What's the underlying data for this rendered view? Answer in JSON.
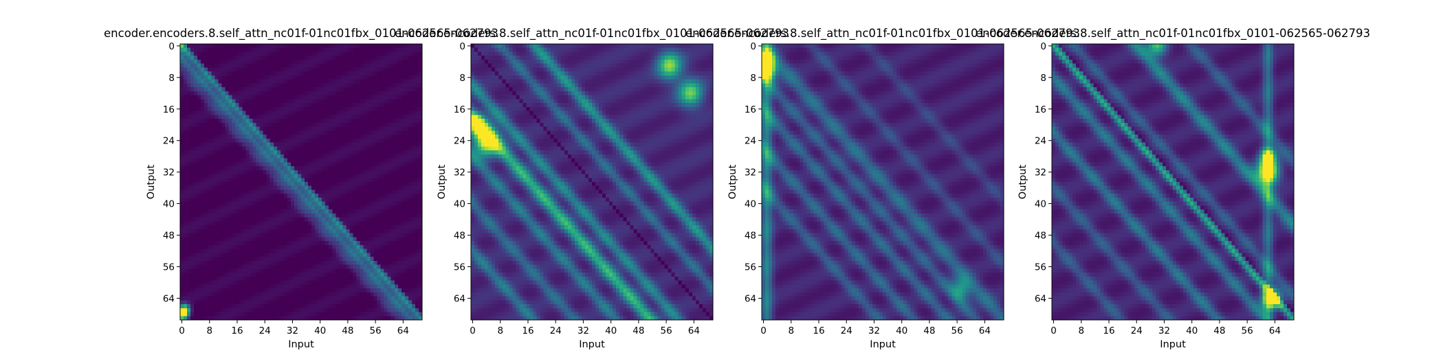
{
  "figure": {
    "colormap": "viridis",
    "background": "#ffffff"
  },
  "chart_data": [
    {
      "type": "heatmap",
      "title": "encoder.encoders.8.self_attn_nc01f-01nc01fbx_0101-062565-062793",
      "xlabel": "Input",
      "ylabel": "Output",
      "size": 70,
      "xticks": [
        0,
        8,
        16,
        24,
        32,
        40,
        48,
        56,
        64
      ],
      "yticks": [
        0,
        8,
        16,
        24,
        32,
        40,
        48,
        56,
        64
      ],
      "xticklabels": [
        "0",
        "8",
        "16",
        "24",
        "32",
        "40",
        "48",
        "56",
        "64"
      ],
      "yticklabels": [
        "0",
        "8",
        "16",
        "24",
        "32",
        "40",
        "48",
        "56",
        "64"
      ],
      "pattern": {
        "base": 0.0,
        "triangle_mask": "upper-right-dark",
        "diagonals": [
          {
            "offset": 0,
            "weight": 0.45,
            "width": 1.0
          },
          {
            "offset": -3,
            "weight": 0.35,
            "width": 1.2
          },
          {
            "offset": -6,
            "weight": 0.18,
            "width": 1.5
          }
        ],
        "hotspots": [
          {
            "row": 68,
            "col": 0,
            "value": 1.0,
            "radius": 1.2
          },
          {
            "row": 67,
            "col": 1,
            "value": 0.7,
            "radius": 1.0
          },
          {
            "row": 0,
            "col": 0,
            "value": 0.3,
            "radius": 1.0
          }
        ]
      }
    },
    {
      "type": "heatmap",
      "title": "encoder.encoders.8.self_attn_nc01f-01nc01fbx_0101-062565-062793",
      "xlabel": "Input",
      "ylabel": "Output",
      "size": 70,
      "xticks": [
        0,
        8,
        16,
        24,
        32,
        40,
        48,
        56,
        64
      ],
      "yticks": [
        0,
        8,
        16,
        24,
        32,
        40,
        48,
        56,
        64
      ],
      "xticklabels": [
        "0",
        "8",
        "16",
        "24",
        "32",
        "40",
        "48",
        "56",
        "64"
      ],
      "yticklabels": [
        "0",
        "8",
        "16",
        "24",
        "32",
        "40",
        "48",
        "56",
        "64"
      ],
      "pattern": {
        "base": 0.12,
        "triangle_mask": "none",
        "diagonals": [
          {
            "offset": 18,
            "weight": 0.4,
            "width": 1.6
          },
          {
            "offset": 8,
            "weight": 0.25,
            "width": 1.4
          },
          {
            "offset": -10,
            "weight": 0.35,
            "width": 1.6
          },
          {
            "offset": -18,
            "weight": 0.55,
            "width": 1.8
          },
          {
            "offset": -28,
            "weight": 0.3,
            "width": 1.6
          },
          {
            "offset": -40,
            "weight": 0.25,
            "width": 1.6
          },
          {
            "offset": -52,
            "weight": 0.3,
            "width": 1.6
          }
        ],
        "darklines": [
          {
            "offset": 0,
            "depth": 0.12
          }
        ],
        "hotspots": [
          {
            "row": 24,
            "col": 4,
            "value": 0.95,
            "radius": 2.5
          },
          {
            "row": 20,
            "col": 1,
            "value": 0.7,
            "radius": 1.8
          },
          {
            "row": 5,
            "col": 57,
            "value": 0.7,
            "radius": 2.5
          },
          {
            "row": 12,
            "col": 63,
            "value": 0.65,
            "radius": 2.5
          }
        ]
      }
    },
    {
      "type": "heatmap",
      "title": "encoder.encoders.8.self_attn_nc01f-01nc01fbx_0101-062565-062793",
      "xlabel": "Input",
      "ylabel": "Output",
      "size": 70,
      "xticks": [
        0,
        8,
        16,
        24,
        32,
        40,
        48,
        56,
        64
      ],
      "yticks": [
        0,
        8,
        16,
        24,
        32,
        40,
        48,
        56,
        64
      ],
      "xticklabels": [
        "0",
        "8",
        "16",
        "24",
        "32",
        "40",
        "48",
        "56",
        "64"
      ],
      "yticklabels": [
        "0",
        "8",
        "16",
        "24",
        "32",
        "40",
        "48",
        "56",
        "64"
      ],
      "pattern": {
        "base": 0.1,
        "triangle_mask": "none",
        "diagonals": [
          {
            "offset": 0,
            "weight": 0.28,
            "width": 2.0
          },
          {
            "offset": -8,
            "weight": 0.22,
            "width": 1.6
          },
          {
            "offset": -16,
            "weight": 0.25,
            "width": 1.6
          },
          {
            "offset": -26,
            "weight": 0.25,
            "width": 1.6
          },
          {
            "offset": -36,
            "weight": 0.22,
            "width": 1.6
          },
          {
            "offset": 14,
            "weight": 0.15,
            "width": 1.6
          },
          {
            "offset": 30,
            "weight": 0.12,
            "width": 1.6
          }
        ],
        "column_bands": [
          {
            "col": 1,
            "weight": 0.35,
            "width": 1.2
          }
        ],
        "hotspots": [
          {
            "row": 6,
            "col": 1,
            "value": 1.0,
            "radius": 1.8
          },
          {
            "row": 3,
            "col": 1,
            "value": 0.8,
            "radius": 1.2
          },
          {
            "row": 62,
            "col": 57,
            "value": 0.45,
            "radius": 2.0
          }
        ]
      }
    },
    {
      "type": "heatmap",
      "title": "encoder.encoders.8.self_attn_nc01f-01nc01fbx_0101-062565-062793",
      "xlabel": "Input",
      "ylabel": "Output",
      "size": 70,
      "xticks": [
        0,
        8,
        16,
        24,
        32,
        40,
        48,
        56,
        64
      ],
      "yticks": [
        0,
        8,
        16,
        24,
        32,
        40,
        48,
        56,
        64
      ],
      "xticklabels": [
        "0",
        "8",
        "16",
        "24",
        "32",
        "40",
        "48",
        "56",
        "64"
      ],
      "yticklabels": [
        "0",
        "8",
        "16",
        "24",
        "32",
        "40",
        "48",
        "56",
        "64"
      ],
      "pattern": {
        "base": 0.1,
        "triangle_mask": "none",
        "diagonals": [
          {
            "offset": 0,
            "weight": 0.5,
            "width": 1.0
          },
          {
            "offset": 6,
            "weight": 0.2,
            "width": 1.4
          },
          {
            "offset": 24,
            "weight": 0.35,
            "width": 1.8
          },
          {
            "offset": 40,
            "weight": 0.2,
            "width": 1.6
          },
          {
            "offset": -8,
            "weight": 0.3,
            "width": 1.6
          },
          {
            "offset": -22,
            "weight": 0.3,
            "width": 1.6
          },
          {
            "offset": -36,
            "weight": 0.2,
            "width": 1.6
          },
          {
            "offset": -50,
            "weight": 0.2,
            "width": 1.6
          }
        ],
        "darklines": [
          {
            "offset": 2,
            "depth": 0.1
          }
        ],
        "column_bands": [
          {
            "col": 62,
            "weight": 0.3,
            "width": 1.0
          }
        ],
        "hotspots": [
          {
            "row": 32,
            "col": 62,
            "value": 1.0,
            "radius": 2.2
          },
          {
            "row": 28,
            "col": 62,
            "value": 0.7,
            "radius": 1.5
          },
          {
            "row": 64,
            "col": 63,
            "value": 0.95,
            "radius": 1.8
          },
          {
            "row": 0,
            "col": 30,
            "value": 0.6,
            "radius": 2.0
          }
        ]
      }
    }
  ]
}
